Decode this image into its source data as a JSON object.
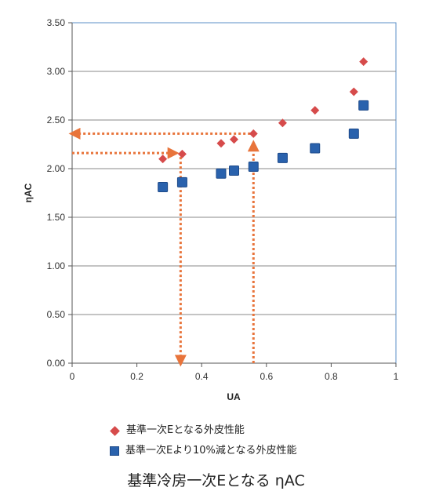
{
  "chart_data": {
    "type": "scatter",
    "title": "",
    "xlabel": "UA",
    "ylabel": "ηAC",
    "xlim": [
      0,
      1
    ],
    "ylim": [
      0,
      3.5
    ],
    "x_ticks": [
      "0",
      "0.2",
      "0.4",
      "0.6",
      "0.8",
      "1"
    ],
    "y_ticks": [
      "0.00",
      "0.50",
      "1.00",
      "1.50",
      "2.00",
      "2.50",
      "3.00",
      "3.50"
    ],
    "grid": "horizontal",
    "legend_position": "bottom",
    "series": [
      {
        "name": "基準一次Eとなる外皮性能",
        "marker": "diamond",
        "color": "#d64b4b",
        "points": [
          {
            "x": 0.28,
            "y": 2.1
          },
          {
            "x": 0.34,
            "y": 2.15
          },
          {
            "x": 0.46,
            "y": 2.26
          },
          {
            "x": 0.5,
            "y": 2.3
          },
          {
            "x": 0.56,
            "y": 2.36
          },
          {
            "x": 0.65,
            "y": 2.47
          },
          {
            "x": 0.75,
            "y": 2.6
          },
          {
            "x": 0.87,
            "y": 2.79
          },
          {
            "x": 0.9,
            "y": 3.1
          }
        ]
      },
      {
        "name": "基準一次Eより10%減となる外皮性能",
        "marker": "square",
        "color": "#2a62ad",
        "points": [
          {
            "x": 0.28,
            "y": 1.81
          },
          {
            "x": 0.34,
            "y": 1.86
          },
          {
            "x": 0.46,
            "y": 1.95
          },
          {
            "x": 0.5,
            "y": 1.98
          },
          {
            "x": 0.56,
            "y": 2.02
          },
          {
            "x": 0.65,
            "y": 2.11
          },
          {
            "x": 0.75,
            "y": 2.21
          },
          {
            "x": 0.87,
            "y": 2.36
          },
          {
            "x": 0.9,
            "y": 2.65
          }
        ]
      }
    ],
    "annotations": {
      "color": "#e8743b",
      "arrows": [
        {
          "from": {
            "x": 0.0,
            "y": 2.16
          },
          "to": {
            "x": 0.32,
            "y": 2.16
          }
        },
        {
          "from": {
            "x": 0.335,
            "y": 2.12
          },
          "to": {
            "x": 0.335,
            "y": 0.0
          }
        },
        {
          "from": {
            "x": 0.56,
            "y": 0.0
          },
          "to": {
            "x": 0.56,
            "y": 2.26
          }
        },
        {
          "from": {
            "x": 0.55,
            "y": 2.36
          },
          "to": {
            "x": 0.0,
            "y": 2.36
          }
        }
      ]
    }
  },
  "caption": "基準冷房一次Eとなる ηAC"
}
